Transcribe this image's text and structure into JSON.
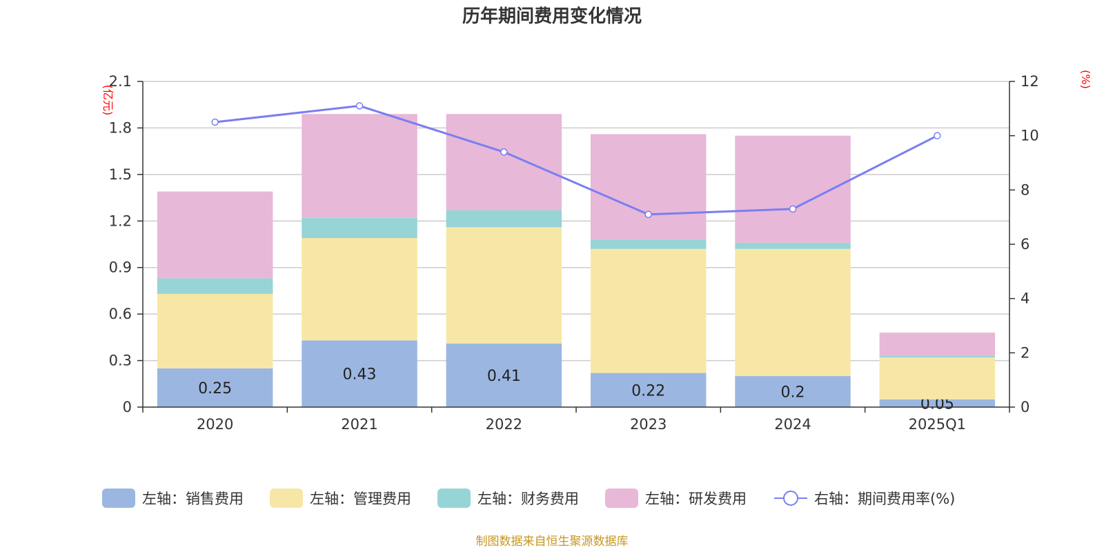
{
  "chart_data": {
    "type": "bar",
    "title": "历年期间费用变化情况",
    "categories": [
      "2020",
      "2021",
      "2022",
      "2023",
      "2024",
      "2025Q1"
    ],
    "left_axis": {
      "unit": "(亿元)",
      "ylim": [
        0,
        2.1
      ],
      "ticks": [
        "0",
        "0.3",
        "0.6",
        "0.9",
        "1.2",
        "1.5",
        "1.8",
        "2.1"
      ]
    },
    "right_axis": {
      "unit": "(%)",
      "ylim": [
        0,
        12
      ],
      "ticks": [
        "0",
        "2",
        "4",
        "6",
        "8",
        "10",
        "12"
      ]
    },
    "stacked": true,
    "series": [
      {
        "name": "左轴：销售费用",
        "color": "#9bb7e1",
        "values": [
          0.25,
          0.43,
          0.41,
          0.22,
          0.2,
          0.05
        ],
        "labels": [
          "0.25",
          "0.43",
          "0.41",
          "0.22",
          "0.2",
          "0.05"
        ]
      },
      {
        "name": "左轴：管理费用",
        "color": "#f7e7a6",
        "values": [
          0.48,
          0.66,
          0.75,
          0.8,
          0.82,
          0.27
        ]
      },
      {
        "name": "左轴：财务费用",
        "color": "#97d4d6",
        "values": [
          0.1,
          0.13,
          0.11,
          0.06,
          0.04,
          0.01
        ]
      },
      {
        "name": "左轴：研发费用",
        "color": "#e7b8d8",
        "values": [
          0.56,
          0.67,
          0.62,
          0.68,
          0.69,
          0.15
        ]
      }
    ],
    "line_series": {
      "name": "右轴：期间费用率(%)",
      "color": "#7a7ef0",
      "values": [
        10.5,
        11.1,
        9.4,
        7.1,
        7.3,
        10.0
      ]
    },
    "grid": true,
    "legend_position": "bottom"
  },
  "source_note": "制图数据来自恒生聚源数据库"
}
